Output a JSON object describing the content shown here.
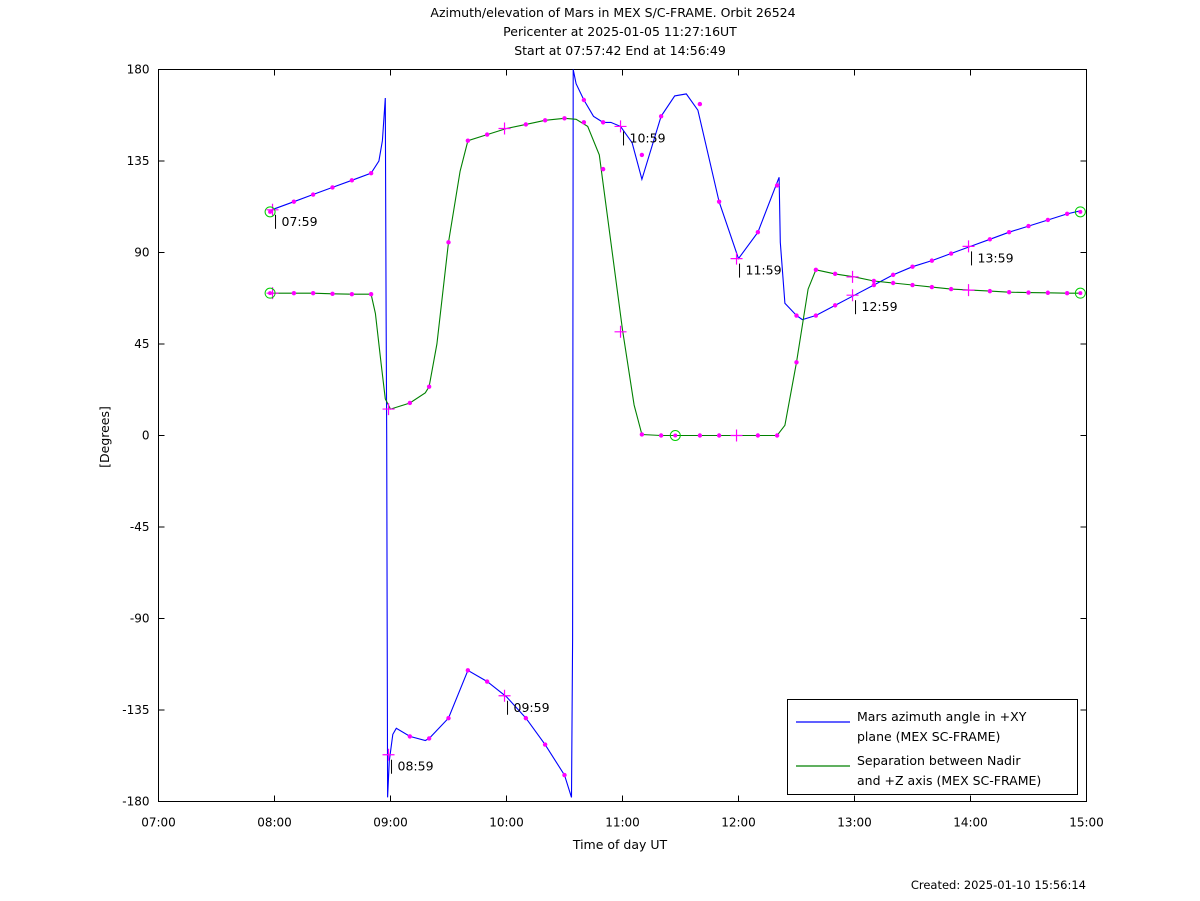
{
  "title": {
    "line1": "Azimuth/elevation of Mars in MEX S/C-FRAME.  Orbit 26524",
    "line2": "Pericenter at 2025-01-05 11:27:16UT",
    "line3": "Start at 07:57:42 End at 14:56:49"
  },
  "footer": {
    "created": "Created: 2025-01-10 15:56:14"
  },
  "chart_data": {
    "type": "line",
    "xlabel": "Time of day UT",
    "ylabel": "[Degrees]",
    "xlim": [
      7,
      15
    ],
    "ylim": [
      -180,
      180
    ],
    "x_ticks": [
      "07:00",
      "08:00",
      "09:00",
      "10:00",
      "11:00",
      "12:00",
      "13:00",
      "14:00",
      "15:00"
    ],
    "y_ticks": [
      "180",
      "135",
      "90",
      "45",
      "0",
      "-45",
      "-90",
      "-135",
      "-180"
    ],
    "y_tick_values": [
      180,
      135,
      90,
      45,
      0,
      -45,
      -90,
      -135,
      -180
    ],
    "grid": false,
    "legend_position": "bottom-right",
    "series": [
      {
        "name": "Mars azimuth angle in +XY plane (MEX SC-FRAME)",
        "legend_lines": [
          "Mars azimuth angle in +XY",
          "plane (MEX SC-FRAME)"
        ],
        "color": "#0000ff",
        "points": [
          [
            7.962,
            110
          ],
          [
            8.0,
            111.5
          ],
          [
            8.167,
            115
          ],
          [
            8.333,
            118.5
          ],
          [
            8.5,
            122
          ],
          [
            8.667,
            125.5
          ],
          [
            8.833,
            129
          ],
          [
            8.9,
            135
          ],
          [
            8.93,
            145
          ],
          [
            8.955,
            166
          ],
          [
            8.957,
            140
          ],
          [
            8.962,
            60
          ],
          [
            8.967,
            0
          ],
          [
            8.975,
            -178
          ],
          [
            8.99,
            -160
          ],
          [
            9.02,
            -147
          ],
          [
            9.05,
            -144
          ],
          [
            9.167,
            -148
          ],
          [
            9.3,
            -150
          ],
          [
            9.333,
            -149
          ],
          [
            9.5,
            -139
          ],
          [
            9.667,
            -115.5
          ],
          [
            9.833,
            -121
          ],
          [
            10.0,
            -128.5
          ],
          [
            10.167,
            -139
          ],
          [
            10.333,
            -152
          ],
          [
            10.5,
            -167
          ],
          [
            10.56,
            -178
          ],
          [
            10.57,
            -100
          ],
          [
            10.573,
            90
          ],
          [
            10.575,
            180
          ],
          [
            10.6,
            173
          ],
          [
            10.667,
            165
          ],
          [
            10.75,
            157
          ],
          [
            10.833,
            154
          ],
          [
            10.9,
            154
          ],
          [
            10.983,
            152
          ],
          [
            11.083,
            144
          ],
          [
            11.167,
            126
          ],
          [
            11.333,
            157
          ],
          [
            11.45,
            167
          ],
          [
            11.55,
            168
          ],
          [
            11.65,
            160
          ],
          [
            11.833,
            115
          ],
          [
            12.0,
            87
          ],
          [
            12.167,
            100
          ],
          [
            12.35,
            127
          ],
          [
            12.36,
            95
          ],
          [
            12.4,
            65
          ],
          [
            12.5,
            59
          ],
          [
            12.55,
            57
          ],
          [
            12.667,
            59
          ],
          [
            12.833,
            64
          ],
          [
            13.0,
            69
          ],
          [
            13.167,
            74
          ],
          [
            13.333,
            79
          ],
          [
            13.5,
            83
          ],
          [
            13.667,
            86
          ],
          [
            13.833,
            89.5
          ],
          [
            14.0,
            93
          ],
          [
            14.167,
            96.5
          ],
          [
            14.333,
            100
          ],
          [
            14.5,
            103
          ],
          [
            14.667,
            106
          ],
          [
            14.833,
            109
          ],
          [
            14.947,
            110.5
          ]
        ],
        "markers": [
          [
            8.167,
            115
          ],
          [
            8.333,
            118.5
          ],
          [
            8.5,
            122
          ],
          [
            8.667,
            125.5
          ],
          [
            8.833,
            129
          ],
          [
            9.167,
            -148
          ],
          [
            9.333,
            -149
          ],
          [
            9.5,
            -139
          ],
          [
            9.667,
            -115.5
          ],
          [
            9.833,
            -121
          ],
          [
            10.167,
            -139
          ],
          [
            10.333,
            -152
          ],
          [
            10.5,
            -167
          ],
          [
            10.667,
            165
          ],
          [
            10.833,
            154
          ],
          [
            11.167,
            138
          ],
          [
            11.333,
            157
          ],
          [
            11.667,
            163
          ],
          [
            11.833,
            115
          ],
          [
            12.167,
            100
          ],
          [
            12.333,
            123
          ],
          [
            12.5,
            59
          ],
          [
            12.667,
            59
          ],
          [
            12.833,
            64
          ],
          [
            13.167,
            74
          ],
          [
            13.333,
            79
          ],
          [
            13.5,
            83
          ],
          [
            13.667,
            86
          ],
          [
            13.833,
            89.5
          ],
          [
            14.167,
            96.5
          ],
          [
            14.333,
            100
          ],
          [
            14.5,
            103
          ],
          [
            14.667,
            106
          ],
          [
            14.833,
            109
          ]
        ],
        "hour_marks": [
          [
            7.983,
            111
          ],
          [
            8.983,
            -157
          ],
          [
            9.983,
            -128
          ],
          [
            10.983,
            152
          ],
          [
            11.983,
            87
          ],
          [
            12.983,
            69
          ],
          [
            13.983,
            93
          ]
        ],
        "circles": [
          [
            7.962,
            110
          ],
          [
            14.947,
            110
          ]
        ]
      },
      {
        "name": "Separation between Nadir and +Z axis (MEX SC-FRAME)",
        "legend_lines": [
          "Separation between Nadir",
          "and +Z axis (MEX SC-FRAME)"
        ],
        "color": "#008000",
        "points": [
          [
            7.962,
            70
          ],
          [
            8.167,
            70
          ],
          [
            8.333,
            70
          ],
          [
            8.5,
            69.7
          ],
          [
            8.667,
            69.5
          ],
          [
            8.833,
            69.5
          ],
          [
            8.87,
            60
          ],
          [
            8.92,
            35
          ],
          [
            8.955,
            18
          ],
          [
            9.0,
            13
          ],
          [
            9.167,
            16
          ],
          [
            9.3,
            21
          ],
          [
            9.333,
            24
          ],
          [
            9.4,
            45
          ],
          [
            9.5,
            95
          ],
          [
            9.6,
            130
          ],
          [
            9.667,
            145
          ],
          [
            9.833,
            148
          ],
          [
            10.0,
            151
          ],
          [
            10.167,
            153
          ],
          [
            10.333,
            155
          ],
          [
            10.5,
            156
          ],
          [
            10.6,
            155.5
          ],
          [
            10.7,
            152
          ],
          [
            10.8,
            138
          ],
          [
            10.9,
            95
          ],
          [
            11.0,
            52
          ],
          [
            11.1,
            15
          ],
          [
            11.167,
            0.5
          ],
          [
            11.333,
            0
          ],
          [
            11.5,
            0
          ],
          [
            11.667,
            0
          ],
          [
            11.833,
            0
          ],
          [
            12.0,
            0
          ],
          [
            12.167,
            0
          ],
          [
            12.333,
            0
          ],
          [
            12.4,
            5
          ],
          [
            12.5,
            36
          ],
          [
            12.6,
            72
          ],
          [
            12.667,
            81.5
          ],
          [
            12.833,
            79.5
          ],
          [
            13.0,
            78
          ],
          [
            13.167,
            76
          ],
          [
            13.333,
            75
          ],
          [
            13.5,
            74
          ],
          [
            13.667,
            73
          ],
          [
            13.833,
            72
          ],
          [
            14.0,
            71.5
          ],
          [
            14.167,
            71
          ],
          [
            14.333,
            70.5
          ],
          [
            14.5,
            70.3
          ],
          [
            14.667,
            70.2
          ],
          [
            14.833,
            70
          ],
          [
            14.947,
            70
          ]
        ],
        "markers": [
          [
            8.167,
            70
          ],
          [
            8.333,
            70
          ],
          [
            8.5,
            69.7
          ],
          [
            8.667,
            69.5
          ],
          [
            8.833,
            69.5
          ],
          [
            9.167,
            16
          ],
          [
            9.333,
            24
          ],
          [
            9.5,
            95
          ],
          [
            9.667,
            145
          ],
          [
            9.833,
            148
          ],
          [
            10.167,
            153
          ],
          [
            10.333,
            155
          ],
          [
            10.5,
            156
          ],
          [
            10.667,
            154
          ],
          [
            10.833,
            131
          ],
          [
            11.167,
            0.5
          ],
          [
            11.333,
            0
          ],
          [
            11.667,
            0
          ],
          [
            11.833,
            0
          ],
          [
            12.167,
            0
          ],
          [
            12.333,
            0
          ],
          [
            12.5,
            36
          ],
          [
            12.667,
            81.5
          ],
          [
            12.833,
            79.5
          ],
          [
            13.167,
            76
          ],
          [
            13.333,
            75
          ],
          [
            13.5,
            74
          ],
          [
            13.667,
            73
          ],
          [
            13.833,
            72
          ],
          [
            14.167,
            71
          ],
          [
            14.333,
            70.5
          ],
          [
            14.5,
            70.3
          ],
          [
            14.667,
            70.2
          ],
          [
            14.833,
            70
          ]
        ],
        "hour_marks": [
          [
            7.983,
            70
          ],
          [
            8.983,
            13
          ],
          [
            9.983,
            151
          ],
          [
            10.983,
            51
          ],
          [
            11.983,
            0
          ],
          [
            12.983,
            78
          ],
          [
            13.983,
            71.5
          ]
        ],
        "circles": [
          [
            7.962,
            70
          ],
          [
            11.455,
            0
          ],
          [
            14.947,
            70
          ]
        ]
      }
    ],
    "annotations": [
      {
        "text": "07:59",
        "x": 7.983,
        "y": 111
      },
      {
        "text": "08:59",
        "x": 8.983,
        "y": -157
      },
      {
        "text": "09:59",
        "x": 9.983,
        "y": -128
      },
      {
        "text": "10:59",
        "x": 10.983,
        "y": 152
      },
      {
        "text": "11:59",
        "x": 11.983,
        "y": 87
      },
      {
        "text": "12:59",
        "x": 12.983,
        "y": 69
      },
      {
        "text": "13:59",
        "x": 13.983,
        "y": 93
      }
    ],
    "marker_color": "#ff00ff",
    "circle_color": "#00cc00"
  }
}
